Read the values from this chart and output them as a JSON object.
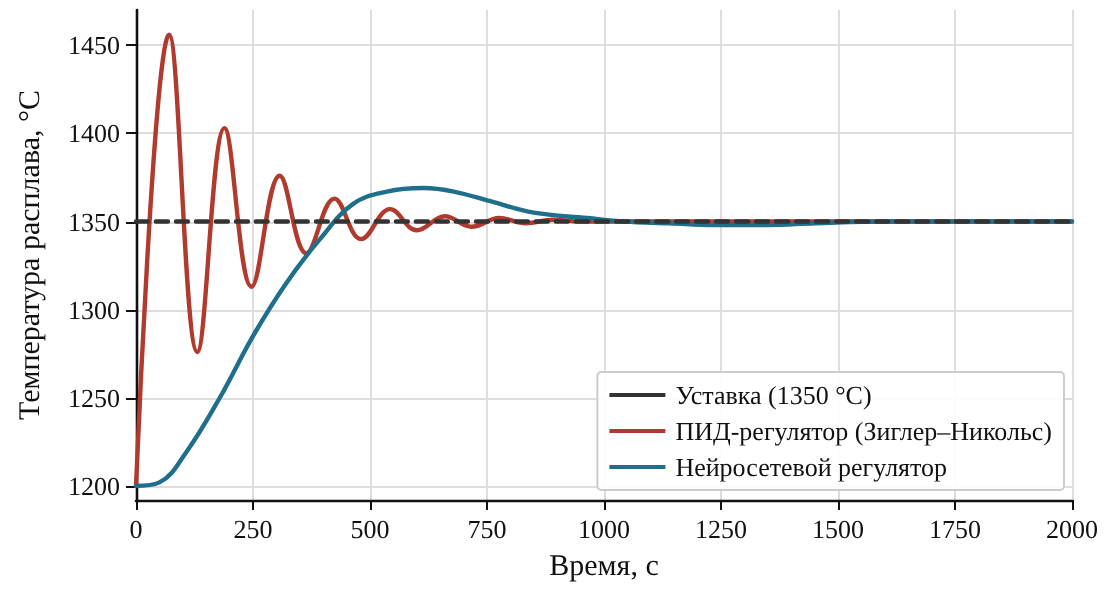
{
  "chart_data": {
    "type": "line",
    "xlabel": "Время, с",
    "ylabel": "Температура расплава, °C",
    "xlim": [
      0,
      2000
    ],
    "xticks": [
      0,
      250,
      500,
      750,
      1000,
      1250,
      1500,
      1750,
      2000
    ],
    "ylim": [
      1192,
      1470
    ],
    "yticks": [
      1200,
      1250,
      1300,
      1350,
      1400,
      1450
    ],
    "grid": true,
    "legend": "bottom right",
    "marker": "none",
    "series": [
      {
        "name": "Уставка (1350 °C)",
        "color": "#333333",
        "line_style": "dashed",
        "x": [
          0,
          2000
        ],
        "values": [
          1350,
          1350
        ]
      },
      {
        "name": "ПИД-регулятор (Зиглер–Никольс)",
        "color": "#b03a2e",
        "line_style": "solid",
        "x": [
          0,
          71,
          131,
          189,
          247,
          307,
          364,
          424,
          481,
          543,
          600,
          660,
          717,
          776,
          833,
          890,
          950,
          1010,
          1100,
          1500,
          2000
        ],
        "values": [
          1200,
          1456,
          1276,
          1403,
          1313,
          1376,
          1332,
          1363,
          1340,
          1357,
          1345,
          1353,
          1347,
          1352,
          1349,
          1351,
          1350,
          1350,
          1350,
          1350,
          1350
        ]
      },
      {
        "name": "Нейросетевой регулятор",
        "color": "#1f6e8c",
        "line_style": "solid",
        "x": [
          0,
          50,
          107,
          179,
          250,
          321,
          393,
          464,
          536,
          614,
          679,
          764,
          850,
          964,
          1043,
          1140,
          1235,
          1350,
          1450,
          1600,
          1800,
          2000
        ],
        "values": [
          1200,
          1202,
          1219,
          1250,
          1285,
          1315,
          1340,
          1360,
          1367,
          1369,
          1367,
          1361,
          1355,
          1352,
          1350,
          1349,
          1348,
          1348,
          1349,
          1350,
          1350,
          1350
        ]
      }
    ]
  }
}
